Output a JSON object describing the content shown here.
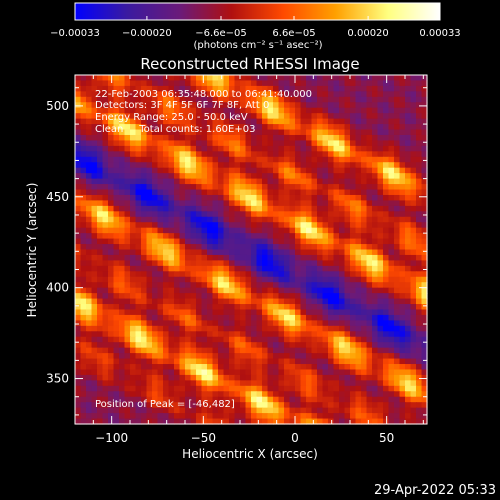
{
  "chart_data": {
    "type": "heatmap",
    "title": "Reconstructed RHESSI Image",
    "xlabel": "Heliocentric X (arcsec)",
    "ylabel": "Heliocentric Y (arcsec)",
    "xlim": [
      -120,
      72
    ],
    "ylim": [
      325,
      517
    ],
    "xticks": [
      -100,
      -50,
      0,
      50
    ],
    "yticks": [
      350,
      400,
      450,
      500
    ],
    "xtick_labels": [
      "−100",
      "−50",
      "0",
      "50"
    ],
    "ytick_labels": [
      "350",
      "400",
      "450",
      "500"
    ],
    "colorbar": {
      "range": [
        -0.00033,
        0.00033
      ],
      "ticks": [
        -0.00033,
        -0.0002,
        -6.6e-05,
        6.6e-05,
        0.0002,
        0.00033
      ],
      "tick_labels": [
        "−0.00033",
        "−0.00020",
        "−6.6e−05",
        "6.6e−05",
        "0.00020",
        "0.00033"
      ],
      "unit_label": "(photons cm⁻² s⁻¹ asec⁻²)",
      "colors": [
        "#0000ff",
        "#3a1aa0",
        "#6a1a7a",
        "#b01010",
        "#ff4a00",
        "#ffa000",
        "#ffff80",
        "#ffffff"
      ]
    },
    "annotations": [
      "22-Feb-2003 06:35:48.000 to 06:41:40.000",
      "Detectors: 3F 4F 5F 6F 7F 8F, Att 0",
      "Energy Range: 25.0 - 50.0 keV",
      "Clean     Total counts: 1.60E+03"
    ],
    "peak_label": "Position of Peak = [-46,482]",
    "peak": [
      -46,
      482
    ],
    "grid": false,
    "bands": [
      {
        "offset": 505,
        "amp": 0.0003
      },
      {
        "offset": 475,
        "amp": 0.00018
      },
      {
        "offset": 450,
        "amp": 0.00031
      },
      {
        "offset": 420,
        "amp": -0.00022
      },
      {
        "offset": 395,
        "amp": 0.00029
      },
      {
        "offset": 365,
        "amp": 0.00015
      },
      {
        "offset": 340,
        "amp": 0.00032
      },
      {
        "offset": 315,
        "amp": 0.00012
      }
    ],
    "band_slope": -0.55
  },
  "footer": {
    "timestamp": "29-Apr-2022 05:33"
  }
}
